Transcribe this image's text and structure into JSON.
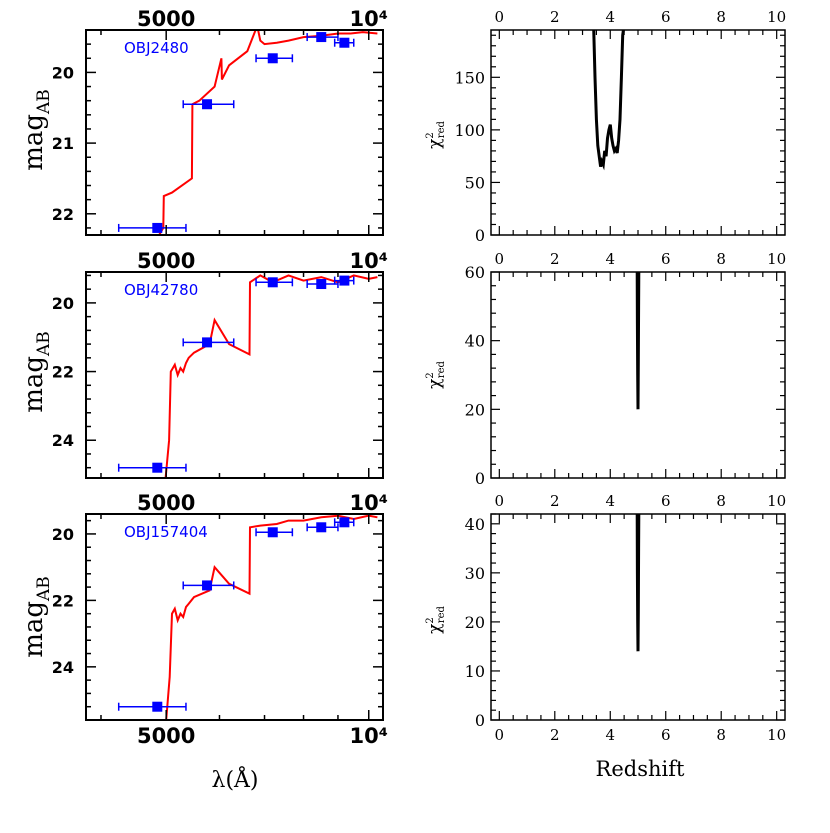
{
  "figure_labels": {
    "sed_ylabel_main": "mag",
    "sed_ylabel_sub": "AB",
    "sed_xlabel": "λ(Å)",
    "chi_ylabel_main": "χ",
    "chi_ylabel_sup": "2",
    "chi_ylabel_sub": "red",
    "chi_xlabel": "Redshift"
  },
  "colors": {
    "model": "#ff0000",
    "phot": "#0000ff",
    "chi": "#000000",
    "axes": "#000000"
  },
  "chart_data": [
    {
      "type": "line",
      "panel": "sed",
      "object": "OBJ2480",
      "title": "OBJ2480",
      "xlabel": "λ(Å)",
      "ylabel": "mag_AB",
      "xscale": "log",
      "xlim": [
        3800,
        10500
      ],
      "ylim": [
        22.3,
        19.4
      ],
      "xticks": [
        {
          "v": 5000,
          "label": "5000"
        },
        {
          "v": 10000,
          "label": "10⁴"
        }
      ],
      "yticks": [
        {
          "v": 20,
          "label": "20"
        },
        {
          "v": 21,
          "label": "21"
        },
        {
          "v": 22,
          "label": "22"
        }
      ],
      "model_x": [
        4880,
        4950,
        4960,
        5100,
        5460,
        5470,
        5600,
        5900,
        6040,
        6050,
        6200,
        6600,
        6790,
        6840,
        6900,
        7000,
        7300,
        7600,
        8000,
        8500,
        9000,
        9400,
        9800,
        10300
      ],
      "model_y": [
        22.3,
        22.2,
        21.75,
        21.7,
        21.5,
        20.45,
        20.4,
        20.2,
        19.8,
        20.1,
        19.9,
        19.7,
        19.4,
        19.38,
        19.55,
        19.6,
        19.58,
        19.55,
        19.5,
        19.48,
        19.45,
        19.45,
        19.43,
        19.45
      ],
      "phot": [
        {
          "x": 4850,
          "y": 22.2,
          "xerr": [
            4250,
            5350
          ]
        },
        {
          "x": 5750,
          "y": 20.45,
          "xerr": [
            5300,
            6300
          ]
        },
        {
          "x": 7200,
          "y": 19.8,
          "xerr": [
            6800,
            7700
          ]
        },
        {
          "x": 8500,
          "y": 19.5,
          "xerr": [
            8100,
            9000
          ]
        },
        {
          "x": 9200,
          "y": 19.58,
          "xerr": [
            8900,
            9500
          ]
        }
      ]
    },
    {
      "type": "line",
      "panel": "chi",
      "object": "OBJ2480",
      "xlabel": "Redshift",
      "ylabel": "χ²_red",
      "xlim": [
        -0.3,
        10.3
      ],
      "ylim": [
        0,
        195
      ],
      "xticks": [
        {
          "v": 0,
          "label": "0"
        },
        {
          "v": 2,
          "label": "2"
        },
        {
          "v": 4,
          "label": "4"
        },
        {
          "v": 6,
          "label": "6"
        },
        {
          "v": 8,
          "label": "8"
        },
        {
          "v": 10,
          "label": "10"
        }
      ],
      "yticks": [
        {
          "v": 0,
          "label": "0"
        },
        {
          "v": 50,
          "label": "50"
        },
        {
          "v": 100,
          "label": "100"
        },
        {
          "v": 150,
          "label": "150"
        }
      ],
      "x": [
        3.4,
        3.45,
        3.5,
        3.55,
        3.6,
        3.65,
        3.7,
        3.75,
        3.8,
        3.85,
        3.9,
        3.95,
        4.0,
        4.05,
        4.1,
        4.15,
        4.2,
        4.25,
        4.3,
        4.35,
        4.4,
        4.45,
        4.5
      ],
      "y": [
        200,
        150,
        110,
        85,
        75,
        65,
        70,
        67,
        80,
        75,
        92,
        100,
        105,
        92,
        85,
        80,
        82,
        78,
        90,
        110,
        150,
        190,
        200
      ]
    },
    {
      "type": "line",
      "panel": "sed",
      "object": "OBJ42780",
      "title": "OBJ42780",
      "xlabel": "λ(Å)",
      "ylabel": "mag_AB",
      "xscale": "log",
      "xlim": [
        3800,
        10500
      ],
      "ylim": [
        25.1,
        19.1
      ],
      "xticks": [
        {
          "v": 5000,
          "label": "5000"
        },
        {
          "v": 10000,
          "label": "10⁴"
        }
      ],
      "yticks": [
        {
          "v": 20,
          "label": "20"
        },
        {
          "v": 22,
          "label": "22"
        },
        {
          "v": 24,
          "label": "24"
        }
      ],
      "model_x": [
        4990,
        5050,
        5080,
        5150,
        5200,
        5250,
        5300,
        5350,
        5400,
        5500,
        5800,
        5900,
        6200,
        6650,
        6660,
        6900,
        7200,
        7600,
        8000,
        8500,
        9000,
        9500,
        10000,
        10300
      ],
      "model_y": [
        25.1,
        24.0,
        22.0,
        21.8,
        22.1,
        21.9,
        22.0,
        21.75,
        21.6,
        21.45,
        21.2,
        20.5,
        21.2,
        21.5,
        19.4,
        19.2,
        19.4,
        19.2,
        19.35,
        19.25,
        19.4,
        19.2,
        19.3,
        19.25
      ],
      "phot": [
        {
          "x": 4850,
          "y": 24.8,
          "xerr": [
            4250,
            5350
          ]
        },
        {
          "x": 5750,
          "y": 21.15,
          "xerr": [
            5300,
            6300
          ]
        },
        {
          "x": 7200,
          "y": 19.4,
          "xerr": [
            6800,
            7700
          ]
        },
        {
          "x": 8500,
          "y": 19.45,
          "xerr": [
            8100,
            9000
          ]
        },
        {
          "x": 9200,
          "y": 19.35,
          "xerr": [
            8900,
            9500
          ]
        }
      ]
    },
    {
      "type": "line",
      "panel": "chi",
      "object": "OBJ42780",
      "xlabel": "Redshift",
      "ylabel": "χ²_red",
      "xlim": [
        -0.3,
        10.3
      ],
      "ylim": [
        0,
        60
      ],
      "xticks": [
        {
          "v": 0,
          "label": "0"
        },
        {
          "v": 2,
          "label": "2"
        },
        {
          "v": 4,
          "label": "4"
        },
        {
          "v": 6,
          "label": "6"
        },
        {
          "v": 8,
          "label": "8"
        },
        {
          "v": 10,
          "label": "10"
        }
      ],
      "yticks": [
        {
          "v": 0,
          "label": "0"
        },
        {
          "v": 20,
          "label": "20"
        },
        {
          "v": 40,
          "label": "40"
        },
        {
          "v": 60,
          "label": "60"
        }
      ],
      "x": [
        4.97,
        4.98,
        4.99,
        5.0,
        5.01,
        5.02,
        5.03
      ],
      "y": [
        60,
        45,
        30,
        20,
        34,
        50,
        60
      ]
    },
    {
      "type": "line",
      "panel": "sed",
      "object": "OBJ157404",
      "title": "OBJ157404",
      "xlabel": "λ(Å)",
      "ylabel": "mag_AB",
      "xscale": "log",
      "xlim": [
        3800,
        10500
      ],
      "ylim": [
        25.6,
        19.4
      ],
      "xticks": [
        {
          "v": 5000,
          "label": "5000"
        },
        {
          "v": 10000,
          "label": "10⁴"
        }
      ],
      "yticks": [
        {
          "v": 20,
          "label": "20"
        },
        {
          "v": 22,
          "label": "22"
        },
        {
          "v": 24,
          "label": "24"
        }
      ],
      "model_x": [
        5000,
        5060,
        5100,
        5150,
        5200,
        5250,
        5300,
        5350,
        5400,
        5500,
        5800,
        5900,
        6200,
        6650,
        6660,
        6900,
        7300,
        7600,
        8000,
        8500,
        9000,
        9500,
        10000,
        10300
      ],
      "model_y": [
        25.6,
        24.3,
        22.4,
        22.25,
        22.6,
        22.4,
        22.5,
        22.2,
        22.1,
        21.9,
        21.7,
        21.0,
        21.5,
        21.8,
        19.8,
        19.75,
        19.7,
        19.6,
        19.6,
        19.5,
        19.45,
        19.55,
        19.45,
        19.5
      ],
      "phot": [
        {
          "x": 4850,
          "y": 25.2,
          "xerr": [
            4250,
            5350
          ]
        },
        {
          "x": 5750,
          "y": 21.55,
          "xerr": [
            5300,
            6300
          ]
        },
        {
          "x": 7200,
          "y": 19.95,
          "xerr": [
            6800,
            7700
          ]
        },
        {
          "x": 8500,
          "y": 19.8,
          "xerr": [
            8100,
            9000
          ]
        },
        {
          "x": 9200,
          "y": 19.65,
          "xerr": [
            8900,
            9500
          ]
        }
      ]
    },
    {
      "type": "line",
      "panel": "chi",
      "object": "OBJ157404",
      "xlabel": "Redshift",
      "ylabel": "χ²_red",
      "xlim": [
        -0.3,
        10.3
      ],
      "ylim": [
        0,
        42
      ],
      "xticks": [
        {
          "v": 0,
          "label": "0"
        },
        {
          "v": 2,
          "label": "2"
        },
        {
          "v": 4,
          "label": "4"
        },
        {
          "v": 6,
          "label": "6"
        },
        {
          "v": 8,
          "label": "8"
        },
        {
          "v": 10,
          "label": "10"
        }
      ],
      "yticks": [
        {
          "v": 0,
          "label": "0"
        },
        {
          "v": 10,
          "label": "10"
        },
        {
          "v": 20,
          "label": "20"
        },
        {
          "v": 30,
          "label": "30"
        },
        {
          "v": 40,
          "label": "40"
        }
      ],
      "x": [
        4.97,
        4.98,
        4.99,
        5.0,
        5.01,
        5.02,
        5.03
      ],
      "y": [
        42,
        30,
        20,
        14,
        22,
        35,
        42
      ]
    }
  ]
}
